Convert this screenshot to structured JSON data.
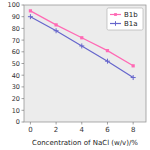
{
  "chart_data": {
    "type": "line",
    "xlabel": "Concentration of NaCl (w/v)/%",
    "x": [
      0,
      2,
      4,
      6,
      8
    ],
    "series": [
      {
        "name": "B1b",
        "color": "#ff69b4",
        "marker": "square",
        "values": [
          95,
          83,
          72,
          61,
          48
        ]
      },
      {
        "name": "B1a",
        "color": "#6666cc",
        "marker": "plus",
        "values": [
          90,
          78,
          65,
          52,
          38
        ]
      }
    ],
    "xlim": [
      -0.5,
      9.0
    ],
    "ylim": [
      0,
      100
    ],
    "xticks": [
      0,
      2,
      4,
      6,
      8
    ],
    "yticks": [
      0,
      10,
      20,
      30,
      40,
      50,
      60,
      70,
      80,
      90,
      100
    ],
    "grid": false,
    "legend": "upper right"
  }
}
